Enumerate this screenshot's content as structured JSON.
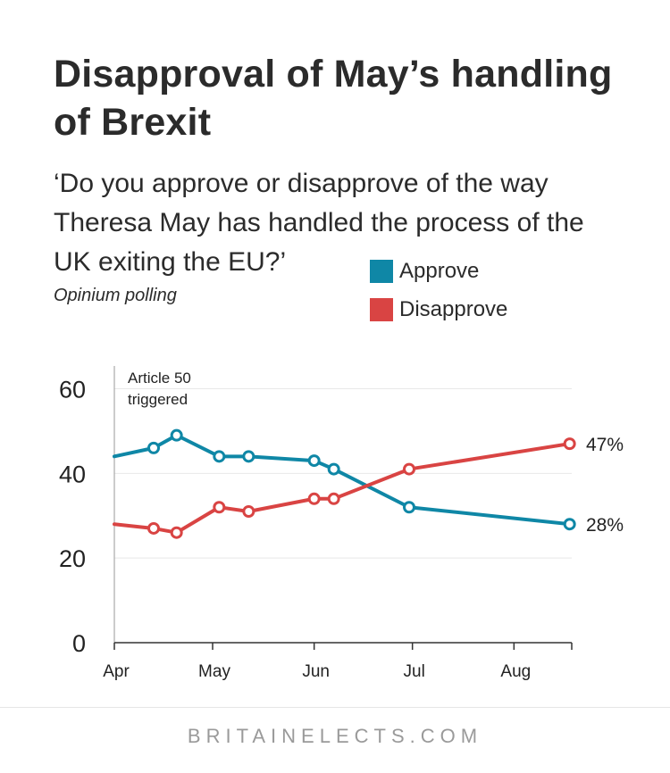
{
  "header": {
    "title": "Disapproval of May’s handling of Brexit",
    "subtitle": "‘Do you approve or disapprove of the way Theresa May has handled the process of the UK exiting the EU?’",
    "source": "Opinium polling"
  },
  "footer": {
    "brand": "BRITAINELECTS.COM"
  },
  "colors": {
    "approve": "#0f87a6",
    "disapprove": "#d94443",
    "grid": "#e8e8e8",
    "axis": "#333333"
  },
  "chart_data": {
    "type": "line",
    "title": "Disapproval of May’s handling of Brexit",
    "x_type": "date",
    "x_ticks": [
      {
        "date": "2017-04-01",
        "label": "Apr"
      },
      {
        "date": "2017-05-01",
        "label": "May"
      },
      {
        "date": "2017-06-01",
        "label": "Jun"
      },
      {
        "date": "2017-07-01",
        "label": "Jul"
      },
      {
        "date": "2017-08-01",
        "label": "Aug"
      }
    ],
    "y_ticks": [
      0,
      20,
      40,
      60
    ],
    "ylim": [
      0,
      62
    ],
    "grid": true,
    "legend_position": "top-right",
    "series": [
      {
        "name": "Approve",
        "color": "#0f87a6",
        "points": [
          {
            "x": "2017-04-01",
            "y": 44,
            "marker": false
          },
          {
            "x": "2017-04-13",
            "y": 46
          },
          {
            "x": "2017-04-20",
            "y": 49
          },
          {
            "x": "2017-05-03",
            "y": 44
          },
          {
            "x": "2017-05-12",
            "y": 44
          },
          {
            "x": "2017-06-01",
            "y": 43
          },
          {
            "x": "2017-06-07",
            "y": 41
          },
          {
            "x": "2017-06-30",
            "y": 32
          },
          {
            "x": "2017-08-18",
            "y": 28
          }
        ],
        "end_label": "28%"
      },
      {
        "name": "Disapprove",
        "color": "#d94443",
        "points": [
          {
            "x": "2017-04-01",
            "y": 28,
            "marker": false
          },
          {
            "x": "2017-04-13",
            "y": 27
          },
          {
            "x": "2017-04-20",
            "y": 26
          },
          {
            "x": "2017-05-03",
            "y": 32
          },
          {
            "x": "2017-05-12",
            "y": 31
          },
          {
            "x": "2017-06-01",
            "y": 34
          },
          {
            "x": "2017-06-07",
            "y": 34
          },
          {
            "x": "2017-06-30",
            "y": 41
          },
          {
            "x": "2017-08-18",
            "y": 47
          }
        ],
        "end_label": "47%"
      }
    ],
    "annotations": [
      {
        "text_lines": [
          "Article 50",
          "triggered"
        ]
      }
    ]
  }
}
